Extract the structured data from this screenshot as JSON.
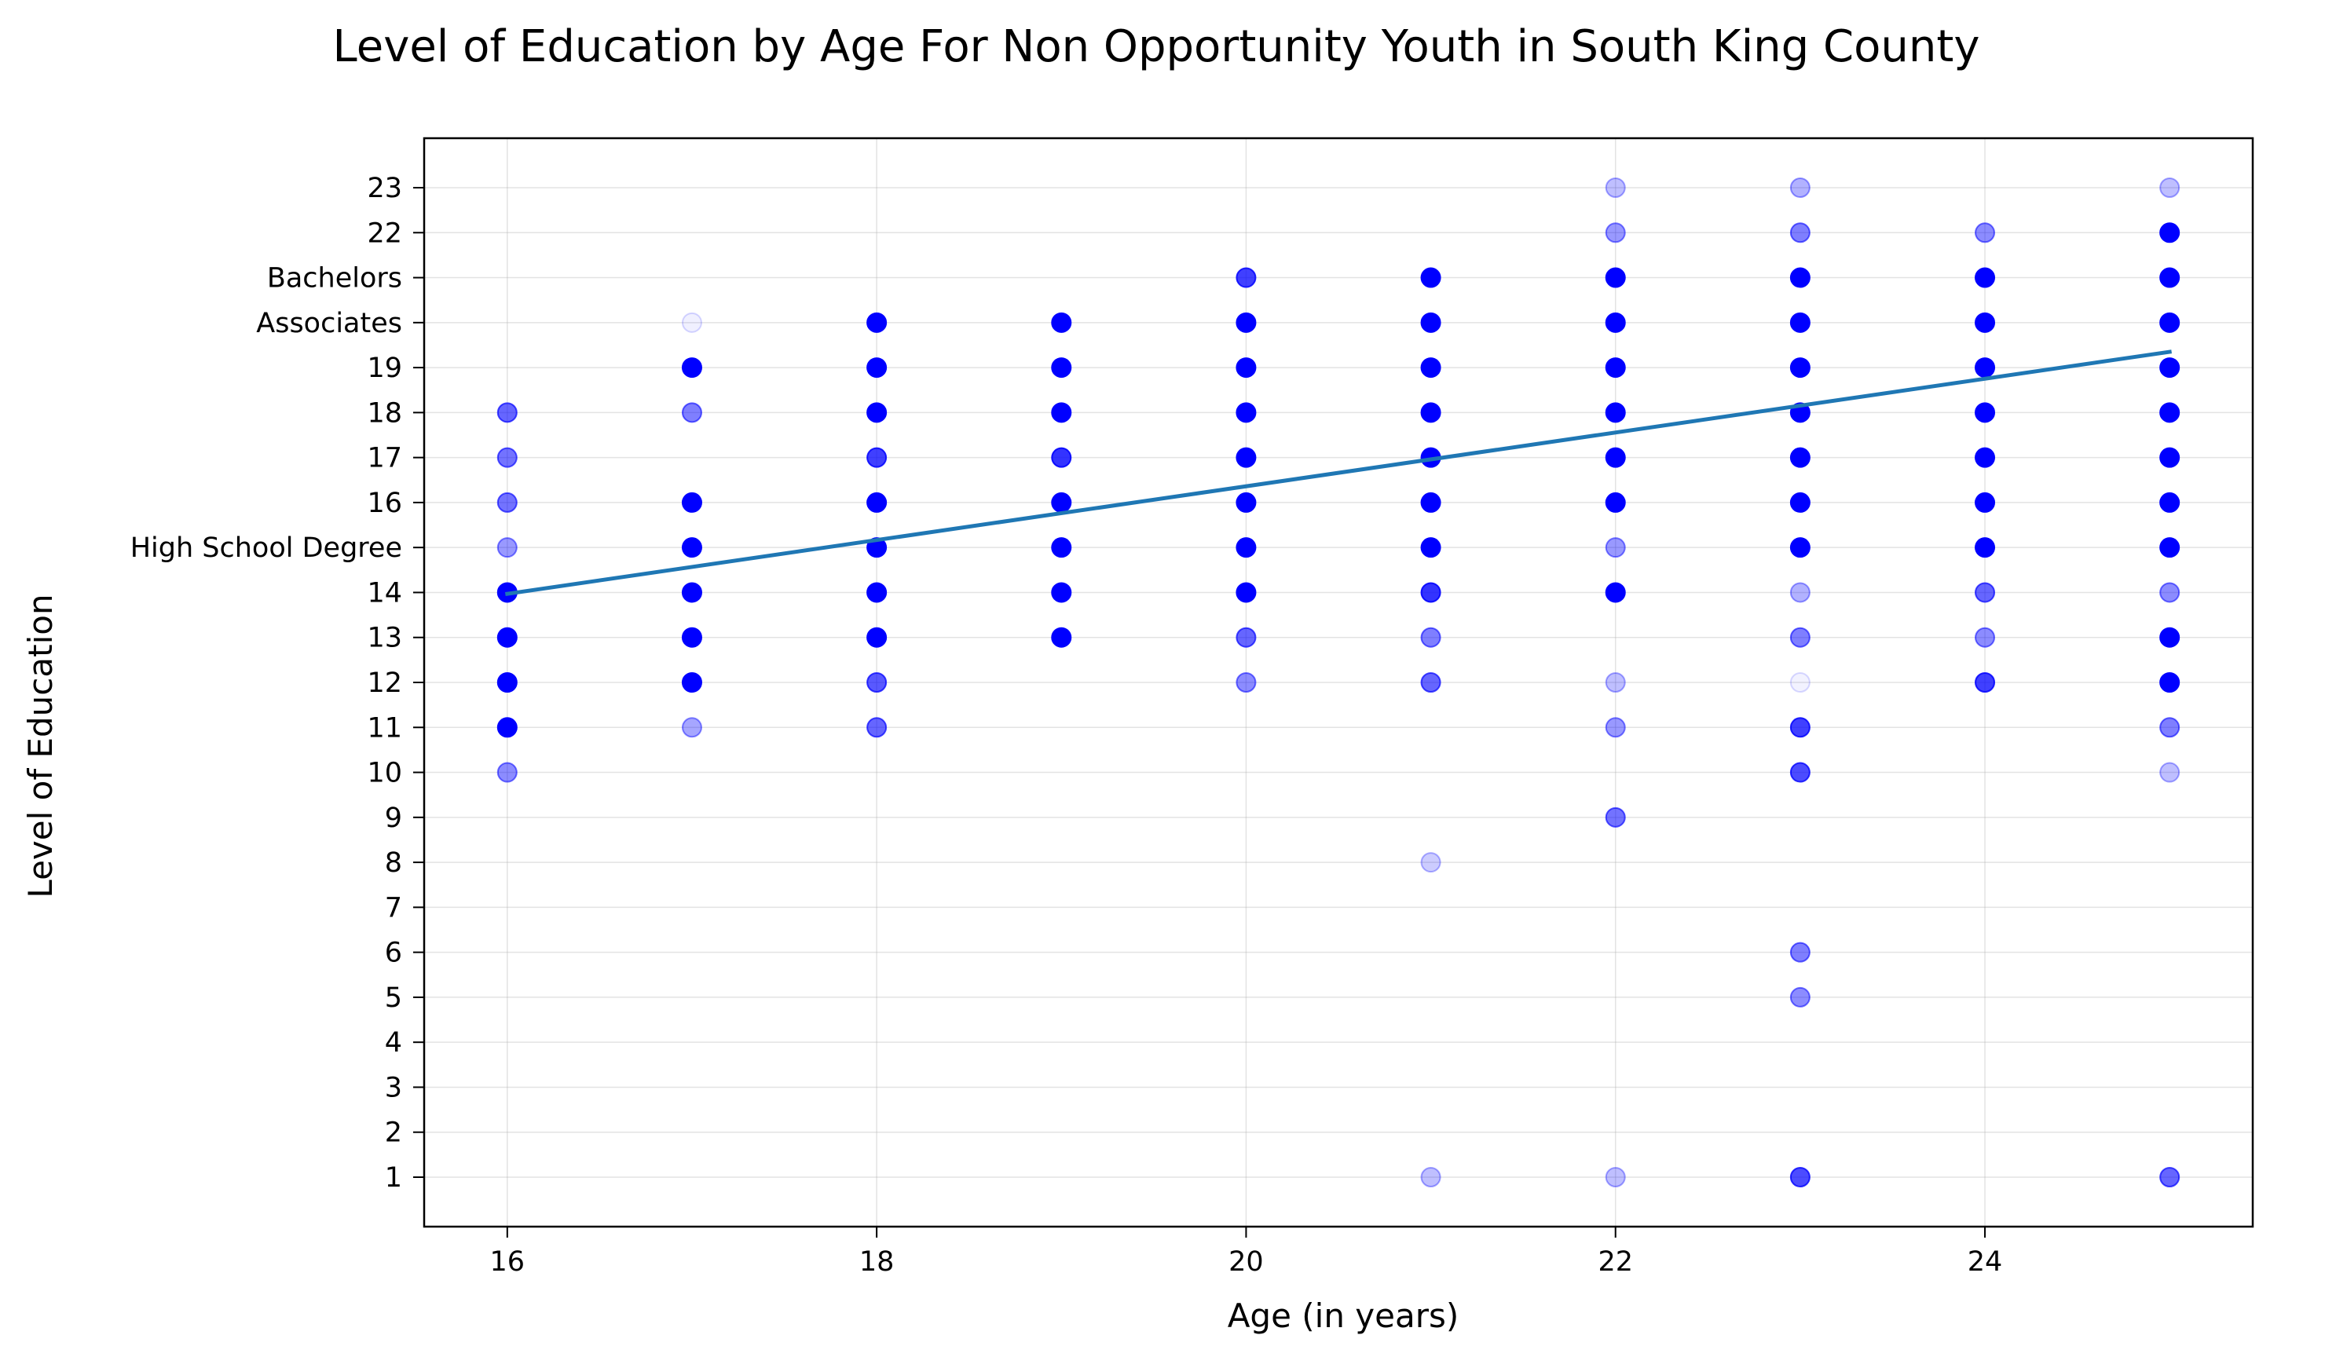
{
  "chart_data": {
    "type": "scatter",
    "title": "Level of Education by Age For Non Opportunity Youth in South King County",
    "xlabel": "Age (in years)",
    "ylabel": "Level of Education",
    "xlim": [
      15.55,
      25.45
    ],
    "ylim": [
      -0.1,
      24.1
    ],
    "grid": true,
    "x_ticks": [
      {
        "value": 16,
        "label": "16"
      },
      {
        "value": 18,
        "label": "18"
      },
      {
        "value": 20,
        "label": "20"
      },
      {
        "value": 22,
        "label": "22"
      },
      {
        "value": 24,
        "label": "24"
      }
    ],
    "y_ticks": [
      {
        "value": 1,
        "label": "1"
      },
      {
        "value": 2,
        "label": "2"
      },
      {
        "value": 3,
        "label": "3"
      },
      {
        "value": 4,
        "label": "4"
      },
      {
        "value": 5,
        "label": "5"
      },
      {
        "value": 6,
        "label": "6"
      },
      {
        "value": 7,
        "label": "7"
      },
      {
        "value": 8,
        "label": "8"
      },
      {
        "value": 9,
        "label": "9"
      },
      {
        "value": 10,
        "label": "10"
      },
      {
        "value": 11,
        "label": "11"
      },
      {
        "value": 12,
        "label": "12"
      },
      {
        "value": 13,
        "label": "13"
      },
      {
        "value": 14,
        "label": "14"
      },
      {
        "value": 15,
        "label": "High School Degree"
      },
      {
        "value": 16,
        "label": "16"
      },
      {
        "value": 17,
        "label": "17"
      },
      {
        "value": 18,
        "label": "18"
      },
      {
        "value": 19,
        "label": "19"
      },
      {
        "value": 20,
        "label": "Associates"
      },
      {
        "value": 21,
        "label": "Bachelors"
      },
      {
        "value": 22,
        "label": "22"
      },
      {
        "value": 23,
        "label": "23"
      }
    ],
    "point_color": "#0000ff",
    "trend_color": "#1f77b4",
    "trend_line": {
      "x": [
        16,
        25
      ],
      "y": [
        13.97,
        19.35
      ]
    },
    "points": [
      {
        "x": 16,
        "y": 18,
        "opacity": 0.6
      },
      {
        "x": 16,
        "y": 17,
        "opacity": 0.55
      },
      {
        "x": 16,
        "y": 16,
        "opacity": 0.55
      },
      {
        "x": 16,
        "y": 15,
        "opacity": 0.4
      },
      {
        "x": 16,
        "y": 14,
        "opacity": 1
      },
      {
        "x": 16,
        "y": 13,
        "opacity": 1
      },
      {
        "x": 16,
        "y": 12,
        "opacity": 1
      },
      {
        "x": 16,
        "y": 11,
        "opacity": 1
      },
      {
        "x": 16,
        "y": 10,
        "opacity": 0.45
      },
      {
        "x": 17,
        "y": 20,
        "opacity": 0.06
      },
      {
        "x": 17,
        "y": 19,
        "opacity": 1
      },
      {
        "x": 17,
        "y": 18,
        "opacity": 0.5
      },
      {
        "x": 17,
        "y": 16,
        "opacity": 1
      },
      {
        "x": 17,
        "y": 15,
        "opacity": 1
      },
      {
        "x": 17,
        "y": 14,
        "opacity": 1
      },
      {
        "x": 17,
        "y": 13,
        "opacity": 1
      },
      {
        "x": 17,
        "y": 12,
        "opacity": 1
      },
      {
        "x": 17,
        "y": 11,
        "opacity": 0.35
      },
      {
        "x": 18,
        "y": 20,
        "opacity": 1
      },
      {
        "x": 18,
        "y": 19,
        "opacity": 1
      },
      {
        "x": 18,
        "y": 18,
        "opacity": 1
      },
      {
        "x": 18,
        "y": 17,
        "opacity": 0.75
      },
      {
        "x": 18,
        "y": 16,
        "opacity": 1
      },
      {
        "x": 18,
        "y": 15,
        "opacity": 1
      },
      {
        "x": 18,
        "y": 14,
        "opacity": 1
      },
      {
        "x": 18,
        "y": 13,
        "opacity": 1
      },
      {
        "x": 18,
        "y": 12,
        "opacity": 0.65
      },
      {
        "x": 18,
        "y": 11,
        "opacity": 0.6
      },
      {
        "x": 19,
        "y": 20,
        "opacity": 1
      },
      {
        "x": 19,
        "y": 19,
        "opacity": 1
      },
      {
        "x": 19,
        "y": 18,
        "opacity": 1
      },
      {
        "x": 19,
        "y": 17,
        "opacity": 0.8
      },
      {
        "x": 19,
        "y": 16,
        "opacity": 1
      },
      {
        "x": 19,
        "y": 15,
        "opacity": 1
      },
      {
        "x": 19,
        "y": 14,
        "opacity": 1
      },
      {
        "x": 19,
        "y": 13,
        "opacity": 1
      },
      {
        "x": 20,
        "y": 21,
        "opacity": 0.75
      },
      {
        "x": 20,
        "y": 20,
        "opacity": 1
      },
      {
        "x": 20,
        "y": 19,
        "opacity": 1
      },
      {
        "x": 20,
        "y": 18,
        "opacity": 1
      },
      {
        "x": 20,
        "y": 17,
        "opacity": 1
      },
      {
        "x": 20,
        "y": 16,
        "opacity": 1
      },
      {
        "x": 20,
        "y": 15,
        "opacity": 1
      },
      {
        "x": 20,
        "y": 14,
        "opacity": 1
      },
      {
        "x": 20,
        "y": 13,
        "opacity": 0.6
      },
      {
        "x": 20,
        "y": 12,
        "opacity": 0.45
      },
      {
        "x": 21,
        "y": 21,
        "opacity": 1
      },
      {
        "x": 21,
        "y": 20,
        "opacity": 1
      },
      {
        "x": 21,
        "y": 19,
        "opacity": 1
      },
      {
        "x": 21,
        "y": 18,
        "opacity": 1
      },
      {
        "x": 21,
        "y": 17,
        "opacity": 1
      },
      {
        "x": 21,
        "y": 16,
        "opacity": 1
      },
      {
        "x": 21,
        "y": 15,
        "opacity": 1
      },
      {
        "x": 21,
        "y": 14,
        "opacity": 0.8
      },
      {
        "x": 21,
        "y": 13,
        "opacity": 0.5
      },
      {
        "x": 21,
        "y": 12,
        "opacity": 0.6
      },
      {
        "x": 21,
        "y": 8,
        "opacity": 0.2
      },
      {
        "x": 21,
        "y": 1,
        "opacity": 0.25
      },
      {
        "x": 22,
        "y": 23,
        "opacity": 0.25
      },
      {
        "x": 22,
        "y": 22,
        "opacity": 0.4
      },
      {
        "x": 22,
        "y": 21,
        "opacity": 1
      },
      {
        "x": 22,
        "y": 20,
        "opacity": 1
      },
      {
        "x": 22,
        "y": 19,
        "opacity": 1
      },
      {
        "x": 22,
        "y": 18,
        "opacity": 1
      },
      {
        "x": 22,
        "y": 17,
        "opacity": 1
      },
      {
        "x": 22,
        "y": 16,
        "opacity": 1
      },
      {
        "x": 22,
        "y": 15,
        "opacity": 0.4
      },
      {
        "x": 22,
        "y": 14,
        "opacity": 1
      },
      {
        "x": 22,
        "y": 12,
        "opacity": 0.25
      },
      {
        "x": 22,
        "y": 11,
        "opacity": 0.4
      },
      {
        "x": 22,
        "y": 9,
        "opacity": 0.55
      },
      {
        "x": 22,
        "y": 1,
        "opacity": 0.25
      },
      {
        "x": 23,
        "y": 23,
        "opacity": 0.3
      },
      {
        "x": 23,
        "y": 22,
        "opacity": 0.5
      },
      {
        "x": 23,
        "y": 21,
        "opacity": 1
      },
      {
        "x": 23,
        "y": 20,
        "opacity": 1
      },
      {
        "x": 23,
        "y": 19,
        "opacity": 1
      },
      {
        "x": 23,
        "y": 18,
        "opacity": 1
      },
      {
        "x": 23,
        "y": 17,
        "opacity": 1
      },
      {
        "x": 23,
        "y": 16,
        "opacity": 1
      },
      {
        "x": 23,
        "y": 15,
        "opacity": 1
      },
      {
        "x": 23,
        "y": 14,
        "opacity": 0.3
      },
      {
        "x": 23,
        "y": 13,
        "opacity": 0.5
      },
      {
        "x": 23,
        "y": 12,
        "opacity": 0.05
      },
      {
        "x": 23,
        "y": 11,
        "opacity": 0.75
      },
      {
        "x": 23,
        "y": 10,
        "opacity": 0.7
      },
      {
        "x": 23,
        "y": 6,
        "opacity": 0.5
      },
      {
        "x": 23,
        "y": 5,
        "opacity": 0.45
      },
      {
        "x": 23,
        "y": 1,
        "opacity": 0.7
      },
      {
        "x": 24,
        "y": 22,
        "opacity": 0.45
      },
      {
        "x": 24,
        "y": 21,
        "opacity": 1
      },
      {
        "x": 24,
        "y": 20,
        "opacity": 1
      },
      {
        "x": 24,
        "y": 19,
        "opacity": 1
      },
      {
        "x": 24,
        "y": 18,
        "opacity": 1
      },
      {
        "x": 24,
        "y": 17,
        "opacity": 1
      },
      {
        "x": 24,
        "y": 16,
        "opacity": 1
      },
      {
        "x": 24,
        "y": 15,
        "opacity": 1
      },
      {
        "x": 24,
        "y": 14,
        "opacity": 0.6
      },
      {
        "x": 24,
        "y": 13,
        "opacity": 0.45
      },
      {
        "x": 24,
        "y": 12,
        "opacity": 0.75
      },
      {
        "x": 25,
        "y": 23,
        "opacity": 0.25
      },
      {
        "x": 25,
        "y": 22,
        "opacity": 1
      },
      {
        "x": 25,
        "y": 21,
        "opacity": 1
      },
      {
        "x": 25,
        "y": 20,
        "opacity": 1
      },
      {
        "x": 25,
        "y": 19,
        "opacity": 1
      },
      {
        "x": 25,
        "y": 18,
        "opacity": 1
      },
      {
        "x": 25,
        "y": 17,
        "opacity": 1
      },
      {
        "x": 25,
        "y": 16,
        "opacity": 1
      },
      {
        "x": 25,
        "y": 15,
        "opacity": 1
      },
      {
        "x": 25,
        "y": 14,
        "opacity": 0.45
      },
      {
        "x": 25,
        "y": 13,
        "opacity": 1
      },
      {
        "x": 25,
        "y": 12,
        "opacity": 1
      },
      {
        "x": 25,
        "y": 11,
        "opacity": 0.5
      },
      {
        "x": 25,
        "y": 10,
        "opacity": 0.25
      },
      {
        "x": 25,
        "y": 1,
        "opacity": 0.6
      }
    ]
  }
}
